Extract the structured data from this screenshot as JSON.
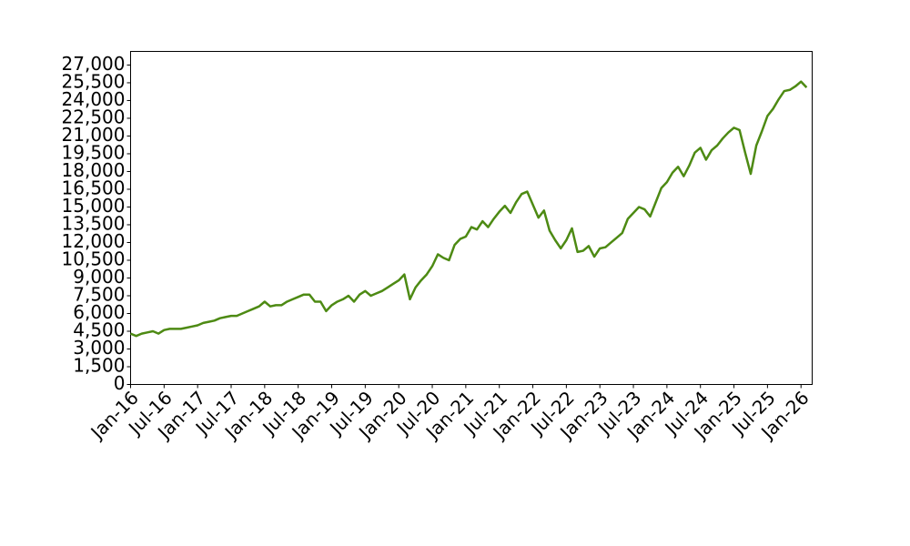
{
  "chart_data": {
    "type": "line",
    "x": [
      "2016-01",
      "2016-02",
      "2016-03",
      "2016-04",
      "2016-05",
      "2016-06",
      "2016-07",
      "2016-08",
      "2016-09",
      "2016-10",
      "2016-11",
      "2016-12",
      "2017-01",
      "2017-02",
      "2017-03",
      "2017-04",
      "2017-05",
      "2017-06",
      "2017-07",
      "2017-08",
      "2017-09",
      "2017-10",
      "2017-11",
      "2017-12",
      "2018-01",
      "2018-02",
      "2018-03",
      "2018-04",
      "2018-05",
      "2018-06",
      "2018-07",
      "2018-08",
      "2018-09",
      "2018-10",
      "2018-11",
      "2018-12",
      "2019-01",
      "2019-02",
      "2019-03",
      "2019-04",
      "2019-05",
      "2019-06",
      "2019-07",
      "2019-08",
      "2019-09",
      "2019-10",
      "2019-11",
      "2019-12",
      "2020-01",
      "2020-02",
      "2020-03",
      "2020-04",
      "2020-05",
      "2020-06",
      "2020-07",
      "2020-08",
      "2020-09",
      "2020-10",
      "2020-11",
      "2020-12",
      "2021-01",
      "2021-02",
      "2021-03",
      "2021-04",
      "2021-05",
      "2021-06",
      "2021-07",
      "2021-08",
      "2021-09",
      "2021-10",
      "2021-11",
      "2021-12",
      "2022-01",
      "2022-02",
      "2022-03",
      "2022-04",
      "2022-05",
      "2022-06",
      "2022-07",
      "2022-08",
      "2022-09",
      "2022-10",
      "2022-11",
      "2022-12",
      "2023-01",
      "2023-02",
      "2023-03",
      "2023-04",
      "2023-05",
      "2023-06",
      "2023-07",
      "2023-08",
      "2023-09",
      "2023-10",
      "2023-11",
      "2023-12",
      "2024-01",
      "2024-02",
      "2024-03",
      "2024-04",
      "2024-05",
      "2024-06",
      "2024-07",
      "2024-08",
      "2024-09",
      "2024-10",
      "2024-11",
      "2024-12",
      "2025-01",
      "2025-02",
      "2025-03",
      "2025-04",
      "2025-05",
      "2025-06",
      "2025-07",
      "2025-08",
      "2025-09",
      "2025-10",
      "2025-11",
      "2025-12",
      "2026-01",
      "2026-02"
    ],
    "series": [
      {
        "color": "#4d8a13",
        "values": [
          4300,
          4100,
          4300,
          4400,
          4500,
          4300,
          4600,
          4700,
          4700,
          4700,
          4800,
          4900,
          5000,
          5200,
          5300,
          5400,
          5600,
          5700,
          5800,
          5800,
          6000,
          6200,
          6400,
          6600,
          7000,
          6600,
          6700,
          6700,
          7000,
          7200,
          7400,
          7600,
          7600,
          7000,
          7000,
          6200,
          6700,
          7000,
          7200,
          7500,
          7000,
          7600,
          7900,
          7500,
          7700,
          7900,
          8200,
          8500,
          8800,
          9300,
          7200,
          8200,
          8800,
          9300,
          10000,
          11000,
          10700,
          10500,
          11800,
          12300,
          12500,
          13300,
          13100,
          13800,
          13300,
          14000,
          14600,
          15100,
          14500,
          15400,
          16100,
          16300,
          15200,
          14100,
          14700,
          13000,
          12200,
          11500,
          12200,
          13200,
          11200,
          11300,
          11700,
          10800,
          11500,
          11600,
          12000,
          12400,
          12800,
          14000,
          14500,
          15000,
          14800,
          14200,
          15400,
          16600,
          17100,
          17900,
          18400,
          17600,
          18500,
          19600,
          20000,
          19000,
          19800,
          20200,
          20800,
          21300,
          21700,
          21500,
          19600,
          17800,
          20200,
          21400,
          22700,
          23300,
          24100,
          24800,
          24900,
          25200,
          25600,
          25100
        ]
      }
    ],
    "xlim": [
      "2016-01",
      "2026-03"
    ],
    "xticks": [
      {
        "value": "2016-01",
        "label": "Jan-16"
      },
      {
        "value": "2016-07",
        "label": "Jul-16"
      },
      {
        "value": "2017-01",
        "label": "Jan-17"
      },
      {
        "value": "2017-07",
        "label": "Jul-17"
      },
      {
        "value": "2018-01",
        "label": "Jan-18"
      },
      {
        "value": "2018-07",
        "label": "Jul-18"
      },
      {
        "value": "2019-01",
        "label": "Jan-19"
      },
      {
        "value": "2019-07",
        "label": "Jul-19"
      },
      {
        "value": "2020-01",
        "label": "Jan-20"
      },
      {
        "value": "2020-07",
        "label": "Jul-20"
      },
      {
        "value": "2021-01",
        "label": "Jan-21"
      },
      {
        "value": "2021-07",
        "label": "Jul-21"
      },
      {
        "value": "2022-01",
        "label": "Jan-22"
      },
      {
        "value": "2022-07",
        "label": "Jul-22"
      },
      {
        "value": "2023-01",
        "label": "Jan-23"
      },
      {
        "value": "2023-07",
        "label": "Jul-23"
      },
      {
        "value": "2024-01",
        "label": "Jan-24"
      },
      {
        "value": "2024-07",
        "label": "Jul-24"
      },
      {
        "value": "2025-01",
        "label": "Jan-25"
      },
      {
        "value": "2025-07",
        "label": "Jul-25"
      },
      {
        "value": "2026-01",
        "label": "Jan-26"
      }
    ],
    "ylim": [
      0,
      28150
    ],
    "yticks": [
      0,
      {
        "value": 1500,
        "label": "1,500"
      },
      {
        "value": 3000,
        "label": "3,000"
      },
      {
        "value": 4500,
        "label": "4,500"
      },
      {
        "value": 6000,
        "label": "6,000"
      },
      {
        "value": 7500,
        "label": "7,500"
      },
      {
        "value": 9000,
        "label": "9,000"
      },
      {
        "value": 10500,
        "label": "10,500"
      },
      {
        "value": 12000,
        "label": "12,000"
      },
      {
        "value": 13500,
        "label": "13,500"
      },
      {
        "value": 15000,
        "label": "15,000"
      },
      {
        "value": 16500,
        "label": "16,500"
      },
      {
        "value": 18000,
        "label": "18,000"
      },
      {
        "value": 19500,
        "label": "19,500"
      },
      {
        "value": 21000,
        "label": "21,000"
      },
      {
        "value": 22500,
        "label": "22,500"
      },
      {
        "value": 24000,
        "label": "24,000"
      },
      {
        "value": 25500,
        "label": "25,500"
      },
      {
        "value": 27000,
        "label": "27,000"
      }
    ],
    "grid": false
  }
}
